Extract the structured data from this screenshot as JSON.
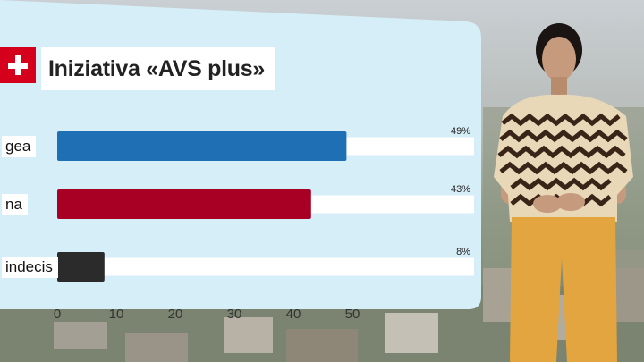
{
  "title": "Iniziativa «AVS plus»",
  "colors": {
    "panel": "#d6eef8",
    "yes": "#1f6fb5",
    "no": "#a80024",
    "undecided": "#2b2b2b",
    "track": "#ffffff",
    "flag": "#d5001c"
  },
  "chart_data": {
    "type": "bar",
    "orientation": "horizontal",
    "title": "Iniziativa «AVS plus»",
    "categories": [
      "gea",
      "na",
      "indecis"
    ],
    "values": [
      49,
      43,
      8
    ],
    "value_labels": [
      "49%",
      "43%",
      "8%"
    ],
    "unit": "%",
    "xlim": [
      0,
      70
    ],
    "xticks": [
      0,
      10,
      20,
      30,
      40,
      50
    ],
    "xtick_labels": [
      "0",
      "10",
      "20",
      "30",
      "40",
      "50"
    ],
    "bar_colors": [
      "#1f6fb5",
      "#a80024",
      "#2b2b2b"
    ],
    "grid": false,
    "legend": "none"
  }
}
